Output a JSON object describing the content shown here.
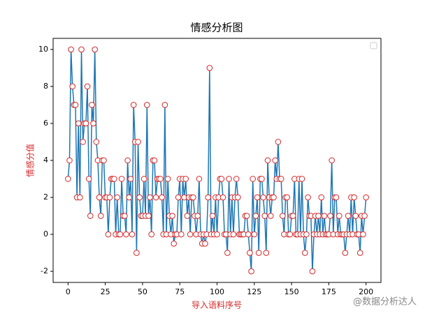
{
  "chart_data": {
    "type": "line",
    "title": "情感分析图",
    "x_label": "导入语料序号",
    "y_label": "情感分值",
    "label_color": "#d62728",
    "x": [
      0,
      1,
      2,
      3,
      4,
      5,
      6,
      7,
      8,
      9,
      10,
      11,
      12,
      13,
      14,
      15,
      16,
      17,
      18,
      19,
      20,
      21,
      22,
      23,
      24,
      25,
      26,
      27,
      28,
      29,
      30,
      31,
      32,
      33,
      34,
      35,
      36,
      37,
      38,
      39,
      40,
      41,
      42,
      43,
      44,
      45,
      46,
      47,
      48,
      49,
      50,
      51,
      52,
      53,
      54,
      55,
      56,
      57,
      58,
      59,
      60,
      61,
      62,
      63,
      64,
      65,
      66,
      67,
      68,
      69,
      70,
      71,
      72,
      73,
      74,
      75,
      76,
      77,
      78,
      79,
      80,
      81,
      82,
      83,
      84,
      85,
      86,
      87,
      88,
      89,
      90,
      91,
      92,
      93,
      94,
      95,
      96,
      97,
      98,
      99,
      100,
      101,
      102,
      103,
      104,
      105,
      106,
      107,
      108,
      109,
      110,
      111,
      112,
      113,
      114,
      115,
      116,
      117,
      118,
      119,
      120,
      121,
      122,
      123,
      124,
      125,
      126,
      127,
      128,
      129,
      130,
      131,
      132,
      133,
      134,
      135,
      136,
      137,
      138,
      139,
      140,
      141,
      142,
      143,
      144,
      145,
      146,
      147,
      148,
      149,
      150,
      151,
      152,
      153,
      154,
      155,
      156,
      157,
      158,
      159,
      160,
      161,
      162,
      163,
      164,
      165,
      166,
      167,
      168,
      169,
      170,
      171,
      172,
      173,
      174,
      175,
      176,
      177,
      178,
      179,
      180,
      181,
      182,
      183,
      184,
      185,
      186,
      187,
      188,
      189,
      190,
      191,
      192,
      193,
      194,
      195,
      196,
      197,
      198,
      199,
      200
    ],
    "series": [
      {
        "color": "#1f77b4",
        "marker_edge": "#d62728",
        "values": [
          3,
          4,
          10,
          8,
          7,
          7,
          2,
          6,
          2,
          10,
          5,
          6,
          6,
          8,
          3,
          1,
          7,
          6,
          10,
          5,
          4,
          2,
          1,
          4,
          4,
          2,
          2,
          0,
          2,
          3,
          3,
          3,
          0,
          2,
          0,
          0,
          3,
          1,
          1,
          0,
          4,
          2,
          3,
          0,
          7,
          5,
          -1,
          5,
          2,
          1,
          1,
          3,
          1,
          7,
          1,
          2,
          0,
          4,
          4,
          2,
          3,
          3,
          3,
          2,
          0,
          7,
          0,
          3,
          1,
          0,
          1,
          -0.5,
          0,
          0,
          2,
          3,
          0,
          3,
          2,
          3,
          1,
          2,
          0,
          2,
          2,
          1,
          0,
          1,
          3,
          0,
          -0.5,
          0,
          -0.5,
          0,
          2,
          9,
          0,
          1,
          0,
          2,
          0,
          2,
          3,
          3,
          2,
          0,
          0,
          -1,
          3,
          0,
          2,
          0,
          2,
          3,
          2,
          0,
          0,
          0,
          0,
          1,
          1,
          0,
          -1,
          -2,
          3,
          0,
          1,
          2,
          -1,
          3,
          3,
          2,
          1,
          -1,
          4,
          2,
          1,
          2,
          2,
          4,
          3,
          5,
          3,
          3,
          1,
          0,
          2,
          2,
          0,
          0,
          1,
          1,
          3,
          0,
          0,
          3,
          0,
          3,
          0,
          -1,
          0,
          2,
          1,
          1,
          -2,
          0,
          1,
          0,
          1,
          0,
          2,
          0,
          1,
          0,
          0,
          0,
          1,
          4,
          0,
          2,
          2,
          0,
          1,
          0,
          0,
          0,
          -1,
          0,
          1,
          0,
          2,
          0,
          2,
          1,
          0,
          0,
          -1,
          1,
          0,
          1,
          2
        ]
      }
    ],
    "xlim": [
      -10,
      210
    ],
    "ylim": [
      -2.6,
      10.6
    ],
    "xticks": [
      0,
      25,
      50,
      75,
      100,
      125,
      150,
      175,
      200
    ],
    "yticks": [
      -2,
      0,
      2,
      4,
      6,
      8,
      10
    ],
    "legend": "upper right",
    "watermark": "@数据分析达人"
  }
}
